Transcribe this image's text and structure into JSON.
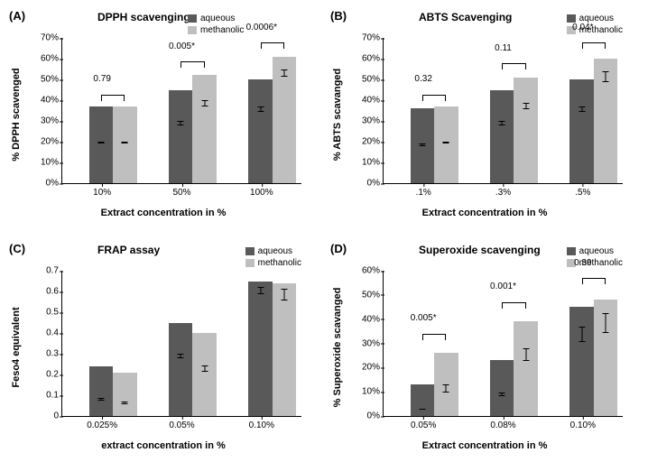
{
  "colors": {
    "aqueous": "#595959",
    "methanolic": "#bfbfbf",
    "bg": "#ffffff"
  },
  "legend": {
    "aqueous": "aqueous",
    "methanolic": "methanolic"
  },
  "panels": [
    {
      "id": "A",
      "label": "(A)",
      "title": "DPPH scavenging",
      "ylabel": "% DPPH scavenged",
      "xlabel": "Extract concentration in %",
      "ymax": 70,
      "ytick_step": 10,
      "yfmt": "pct",
      "legend_pos": "top-center",
      "groups": [
        {
          "x": "10%",
          "aq": 37,
          "me": 37,
          "aq_err": 1,
          "me_err": 1,
          "p": "0.79"
        },
        {
          "x": "50%",
          "aq": 45,
          "me": 52,
          "aq_err": 2,
          "me_err": 2,
          "p": "0.005*"
        },
        {
          "x": "100%",
          "aq": 50,
          "me": 61,
          "aq_err": 2,
          "me_err": 2,
          "p": "0.0006*"
        }
      ]
    },
    {
      "id": "B",
      "label": "(B)",
      "title": "ABTS Scavenging",
      "ylabel": "% ABTS scavanged",
      "xlabel": "Extract concentration in %",
      "ymax": 70,
      "ytick_step": 10,
      "yfmt": "pct",
      "legend_pos": "top-right",
      "groups": [
        {
          "x": ".1%",
          "aq": 36,
          "me": 37,
          "aq_err": 1,
          "me_err": 1,
          "p": "0.32"
        },
        {
          "x": ".3%",
          "aq": 45,
          "me": 51,
          "aq_err": 2,
          "me_err": 2,
          "p": "0.11"
        },
        {
          "x": ".5%",
          "aq": 50,
          "me": 60,
          "aq_err": 2,
          "me_err": 3,
          "p": "0.04*"
        }
      ]
    },
    {
      "id": "C",
      "label": "(C)",
      "title": "FRAP assay",
      "ylabel": "Feso4 equivalent",
      "xlabel": "extract concentration in %",
      "ymax": 0.7,
      "ytick_step": 0.1,
      "yfmt": "dec",
      "legend_pos": "top-right",
      "groups": [
        {
          "x": "0.025%",
          "aq": 0.24,
          "me": 0.21,
          "aq_err": 0.02,
          "me_err": 0.02
        },
        {
          "x": "0.05%",
          "aq": 0.45,
          "me": 0.4,
          "aq_err": 0.02,
          "me_err": 0.03
        },
        {
          "x": "0.10%",
          "aq": 0.65,
          "me": 0.64,
          "aq_err": 0.02,
          "me_err": 0.03
        }
      ]
    },
    {
      "id": "D",
      "label": "(D)",
      "title": "Superoxide scavenging",
      "ylabel": "% Superoxide  scavanged",
      "xlabel": "Extract concentration in %",
      "ymax": 60,
      "ytick_step": 10,
      "yfmt": "pct",
      "legend_pos": "top-right",
      "groups": [
        {
          "x": "0.05%",
          "aq": 13,
          "me": 26,
          "aq_err": 1.5,
          "me_err": 4,
          "p": "0.005*"
        },
        {
          "x": "0.08%",
          "aq": 23,
          "me": 39,
          "aq_err": 2,
          "me_err": 4,
          "p": "0.001*"
        },
        {
          "x": "0.10%",
          "aq": 45,
          "me": 48,
          "aq_err": 4,
          "me_err": 5,
          "p": "0.39"
        }
      ]
    }
  ]
}
